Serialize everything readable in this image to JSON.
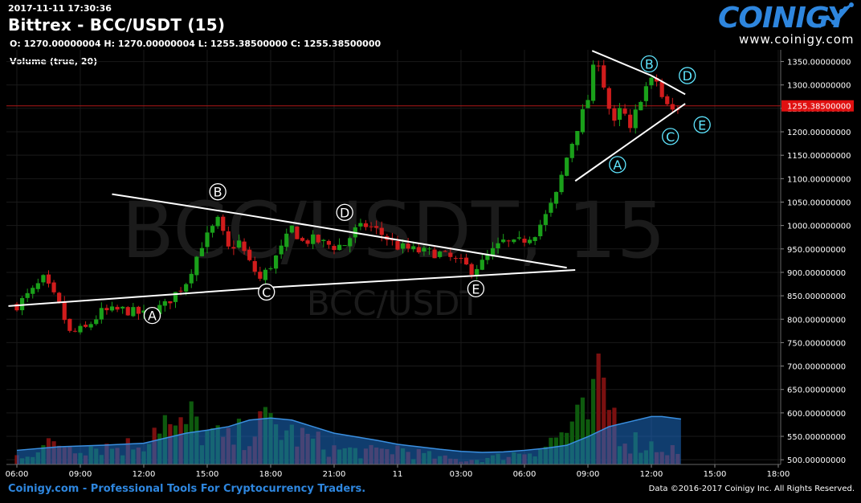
{
  "header": {
    "timestamp": "2017-11-11 17:30:36",
    "title": "Bittrex - BCC/USDT (15)",
    "ohlc": "O: 1270.00000004 H: 1270.00000004 L: 1255.38500000 C: 1255.38500000",
    "volume_label": "Volume (true, 20)"
  },
  "logo": {
    "name": "COINIGY",
    "url": "www.coinigy.com",
    "icon": "rising-line-chart-icon"
  },
  "watermark": {
    "big": "BCC/USDT, 15",
    "small": "BCC/USDT"
  },
  "footer": {
    "left": "Coinigy.com - Professional Tools For Cryptocurrency Traders.",
    "right": "Data ©2016-2017 Coinigy Inc. All Rights Reserved."
  },
  "colors": {
    "up": "#1aa01a",
    "down": "#d01c1c",
    "accent": "#2e86de",
    "price_line": "#ff2020",
    "volume_ma": "#1e6fc8"
  },
  "chart_data": {
    "type": "candlestick",
    "ylim": [
      490,
      1375
    ],
    "y_ticks": [
      "1350.00000000",
      "1300.00000000",
      "1250.00000000",
      "1200.00000000",
      "1150.00000000",
      "1100.00000000",
      "1050.00000000",
      "1000.00000000",
      "950.00000000",
      "900.00000000",
      "850.00000000",
      "800.00000000",
      "750.00000000",
      "700.00000000",
      "650.00000000",
      "600.00000000",
      "550.00000000",
      "500.00000000"
    ],
    "x_ticks": [
      "06:00",
      "09:00",
      "12:00",
      "15:00",
      "18:00",
      "21:00",
      "11",
      "03:00",
      "06:00",
      "09:00",
      "12:00",
      "15:00",
      "18:00"
    ],
    "x_tick_hours": [
      0,
      3,
      6,
      9,
      12,
      15,
      18,
      21,
      24,
      27,
      30,
      33,
      36
    ],
    "current_price": "1255.38500000",
    "current_price_value": 1255.385,
    "bar_hours": 0.25,
    "keypoints": [
      [
        0,
        830
      ],
      [
        0.75,
        860
      ],
      [
        1.25,
        885
      ],
      [
        2,
        830
      ],
      [
        2.5,
        770
      ],
      [
        3.25,
        780
      ],
      [
        4,
        815
      ],
      [
        5,
        820
      ],
      [
        6,
        810
      ],
      [
        7,
        830
      ],
      [
        8,
        880
      ],
      [
        8.75,
        960
      ],
      [
        9.5,
        1010
      ],
      [
        10,
        950
      ],
      [
        10.5,
        965
      ],
      [
        11,
        920
      ],
      [
        11.5,
        885
      ],
      [
        12,
        915
      ],
      [
        12.5,
        950
      ],
      [
        13,
        995
      ],
      [
        13.5,
        965
      ],
      [
        14,
        970
      ],
      [
        15,
        955
      ],
      [
        15.5,
        960
      ],
      [
        16,
        990
      ],
      [
        16.5,
        1000
      ],
      [
        17,
        990
      ],
      [
        18,
        955
      ],
      [
        19,
        945
      ],
      [
        20,
        940
      ],
      [
        21,
        920
      ],
      [
        21.5,
        905
      ],
      [
        22,
        920
      ],
      [
        22.5,
        945
      ],
      [
        23,
        965
      ],
      [
        23.5,
        960
      ],
      [
        24,
        970
      ],
      [
        24.5,
        985
      ],
      [
        25,
        1020
      ],
      [
        25.5,
        1065
      ],
      [
        26,
        1145
      ],
      [
        26.5,
        1210
      ],
      [
        27,
        1270
      ],
      [
        27.4,
        1370
      ],
      [
        27.8,
        1290
      ],
      [
        28.2,
        1210
      ],
      [
        28.6,
        1255
      ],
      [
        29,
        1200
      ],
      [
        29.4,
        1265
      ],
      [
        29.8,
        1300
      ],
      [
        30.2,
        1315
      ],
      [
        30.6,
        1260
      ],
      [
        31,
        1245
      ],
      [
        31.4,
        1255
      ]
    ],
    "volume_keypoints": [
      [
        0,
        20
      ],
      [
        1,
        35
      ],
      [
        2,
        50
      ],
      [
        3,
        45
      ],
      [
        5,
        40
      ],
      [
        6,
        55
      ],
      [
        6.8,
        115
      ],
      [
        7.5,
        70
      ],
      [
        8.2,
        105
      ],
      [
        9,
        70
      ],
      [
        10,
        55
      ],
      [
        11,
        80
      ],
      [
        12,
        95
      ],
      [
        13,
        70
      ],
      [
        14,
        55
      ],
      [
        15,
        35
      ],
      [
        17,
        28
      ],
      [
        18,
        38
      ],
      [
        19,
        25
      ],
      [
        20,
        15
      ],
      [
        21,
        10
      ],
      [
        22,
        12
      ],
      [
        23,
        20
      ],
      [
        24,
        30
      ],
      [
        25,
        45
      ],
      [
        26,
        80
      ],
      [
        27,
        110
      ],
      [
        27.6,
        190
      ],
      [
        28.2,
        120
      ],
      [
        28.8,
        60
      ],
      [
        29.5,
        50
      ],
      [
        30.5,
        40
      ],
      [
        31.4,
        30
      ]
    ],
    "volume_ma_keypoints": [
      [
        0,
        28
      ],
      [
        2,
        35
      ],
      [
        4,
        38
      ],
      [
        6,
        42
      ],
      [
        7,
        52
      ],
      [
        8,
        62
      ],
      [
        9,
        68
      ],
      [
        10,
        75
      ],
      [
        11,
        88
      ],
      [
        12,
        92
      ],
      [
        13,
        88
      ],
      [
        14,
        75
      ],
      [
        15,
        62
      ],
      [
        16,
        55
      ],
      [
        17,
        48
      ],
      [
        18,
        40
      ],
      [
        19,
        35
      ],
      [
        20,
        30
      ],
      [
        21,
        26
      ],
      [
        22,
        24
      ],
      [
        23,
        25
      ],
      [
        24,
        28
      ],
      [
        25,
        32
      ],
      [
        26,
        38
      ],
      [
        27,
        55
      ],
      [
        28,
        75
      ],
      [
        29,
        85
      ],
      [
        30,
        95
      ],
      [
        30.5,
        95
      ],
      [
        31.4,
        90
      ]
    ],
    "volume_scale_max": 220,
    "trendlines": [
      {
        "from": [
          4.5,
          1067
        ],
        "to": [
          10.5,
          1025
        ]
      },
      {
        "from": [
          10.5,
          1025
        ],
        "to": [
          26,
          910
        ]
      },
      {
        "from": [
          -0.4,
          828
        ],
        "to": [
          12,
          868
        ]
      },
      {
        "from": [
          12,
          868
        ],
        "to": [
          26.4,
          905
        ]
      },
      {
        "from": [
          27.2,
          1373
        ],
        "to": [
          30,
          1320
        ]
      },
      {
        "from": [
          30,
          1320
        ],
        "to": [
          31.6,
          1280
        ]
      },
      {
        "from": [
          26.4,
          1095
        ],
        "to": [
          31.6,
          1260
        ]
      }
    ],
    "wave_labels": [
      {
        "text": "A",
        "x": 6.4,
        "y": 808,
        "color": "white"
      },
      {
        "text": "B",
        "x": 9.5,
        "y": 1072,
        "color": "white"
      },
      {
        "text": "C",
        "x": 11.8,
        "y": 858,
        "color": "white"
      },
      {
        "text": "D",
        "x": 15.5,
        "y": 1028,
        "color": "white"
      },
      {
        "text": "E",
        "x": 21.7,
        "y": 865,
        "color": "white"
      },
      {
        "text": "A",
        "x": 28.4,
        "y": 1130,
        "color": "cyan"
      },
      {
        "text": "B",
        "x": 29.9,
        "y": 1345,
        "color": "cyan"
      },
      {
        "text": "C",
        "x": 30.9,
        "y": 1190,
        "color": "cyan"
      },
      {
        "text": "D",
        "x": 31.7,
        "y": 1320,
        "color": "cyan"
      },
      {
        "text": "E",
        "x": 32.4,
        "y": 1215,
        "color": "cyan"
      }
    ]
  }
}
